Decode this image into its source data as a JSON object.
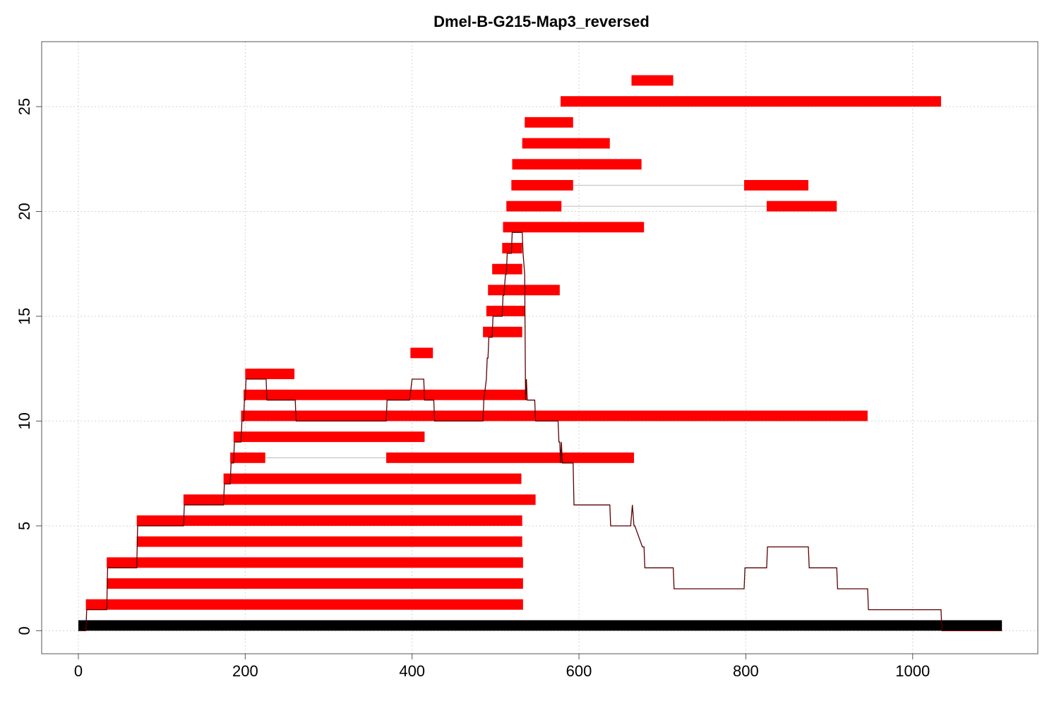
{
  "chart_data": {
    "type": "bar",
    "title": "Dmel-B-G215-Map3_reversed",
    "xlabel": "",
    "ylabel": "",
    "xlim": [
      -44,
      1150
    ],
    "ylim": [
      -1.1,
      28.1
    ],
    "xticks": [
      0,
      200,
      400,
      600,
      800,
      1000
    ],
    "yticks": [
      0,
      5,
      10,
      15,
      20,
      25
    ],
    "grid": true,
    "colors": {
      "segment": "#ff0000",
      "reference": "#000000",
      "coverage": "#5a0000",
      "link": "#bbbbbb",
      "grid": "#d3d3d3"
    },
    "reference_bar": {
      "x0": 0,
      "x1": 1107,
      "y": 0.25,
      "thickness": 0.5
    },
    "segments": [
      {
        "x0": 9,
        "x1": 533,
        "y": 1.25
      },
      {
        "x0": 34,
        "x1": 533,
        "y": 2.25
      },
      {
        "x0": 34,
        "x1": 533,
        "y": 3.25
      },
      {
        "x0": 70,
        "x1": 532,
        "y": 4.25
      },
      {
        "x0": 70,
        "x1": 532,
        "y": 5.25
      },
      {
        "x0": 126,
        "x1": 548,
        "y": 6.25
      },
      {
        "x0": 174,
        "x1": 531,
        "y": 7.25
      },
      {
        "x0": 182,
        "x1": 224,
        "y": 8.25
      },
      {
        "x0": 369,
        "x1": 666,
        "y": 8.25
      },
      {
        "x0": 186,
        "x1": 415,
        "y": 9.25
      },
      {
        "x0": 195,
        "x1": 946,
        "y": 10.25
      },
      {
        "x0": 198,
        "x1": 538,
        "y": 11.25
      },
      {
        "x0": 200,
        "x1": 259,
        "y": 12.25
      },
      {
        "x0": 398,
        "x1": 425,
        "y": 13.25
      },
      {
        "x0": 485,
        "x1": 532,
        "y": 14.25
      },
      {
        "x0": 489,
        "x1": 535,
        "y": 15.25
      },
      {
        "x0": 491,
        "x1": 577,
        "y": 16.25
      },
      {
        "x0": 496,
        "x1": 532,
        "y": 17.25
      },
      {
        "x0": 508,
        "x1": 532,
        "y": 18.25
      },
      {
        "x0": 509,
        "x1": 678,
        "y": 19.25
      },
      {
        "x0": 513,
        "x1": 579,
        "y": 20.25
      },
      {
        "x0": 825,
        "x1": 909,
        "y": 20.25
      },
      {
        "x0": 519,
        "x1": 593,
        "y": 21.25
      },
      {
        "x0": 798,
        "x1": 875,
        "y": 21.25
      },
      {
        "x0": 520,
        "x1": 675,
        "y": 22.25
      },
      {
        "x0": 532,
        "x1": 637,
        "y": 23.25
      },
      {
        "x0": 535,
        "x1": 593,
        "y": 24.25
      },
      {
        "x0": 578,
        "x1": 1034,
        "y": 25.25
      },
      {
        "x0": 663,
        "x1": 713,
        "y": 26.25
      }
    ],
    "links": [
      {
        "x0": 224,
        "x1": 369,
        "y": 8.25
      },
      {
        "x0": 579,
        "x1": 825,
        "y": 20.25
      },
      {
        "x0": 593,
        "x1": 798,
        "y": 21.25
      }
    ],
    "coverage": {
      "x": [
        0,
        9,
        10,
        34,
        35,
        70,
        71,
        126,
        127,
        174,
        175,
        182,
        183,
        186,
        187,
        195,
        196,
        198,
        199,
        200,
        201,
        225,
        226,
        260,
        261,
        369,
        370,
        397,
        400,
        414,
        415,
        426,
        427,
        485,
        486,
        489,
        490,
        491,
        492,
        496,
        497,
        508,
        509,
        510,
        512,
        513,
        514,
        519,
        520,
        521,
        531,
        532,
        533,
        535,
        536,
        537,
        538,
        539,
        547,
        548,
        575,
        576,
        577,
        578,
        579,
        580,
        593,
        594,
        637,
        638,
        662,
        664,
        666,
        667,
        676,
        678,
        679,
        713,
        714,
        798,
        799,
        825,
        826,
        875,
        876,
        909,
        910,
        946,
        947,
        1034,
        1035,
        1107
      ],
      "y": [
        0,
        0,
        1,
        1,
        3,
        3,
        5,
        5,
        6,
        6,
        7,
        7,
        8,
        8,
        9,
        9,
        10,
        10,
        11,
        11,
        12,
        12,
        11,
        11,
        10,
        10,
        11,
        11,
        12,
        12,
        11,
        11,
        10,
        10,
        11,
        12,
        13,
        13,
        14,
        14,
        15,
        15,
        16,
        16,
        17,
        17,
        18,
        18,
        19,
        19,
        19,
        19,
        18,
        17,
        11,
        12,
        11,
        11,
        11,
        10,
        10,
        9,
        9,
        8,
        9,
        8,
        8,
        6,
        6,
        5,
        5,
        6,
        5,
        5,
        4,
        4,
        3,
        3,
        2,
        2,
        3,
        3,
        4,
        4,
        3,
        3,
        2,
        2,
        1,
        1,
        0,
        0
      ]
    }
  }
}
